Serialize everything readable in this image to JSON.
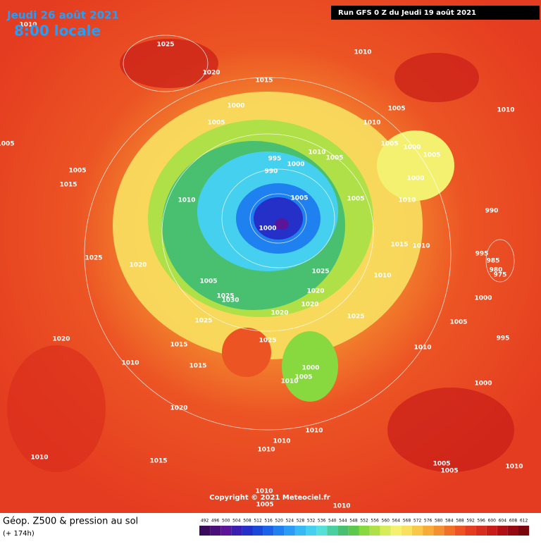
{
  "header": {
    "date": "Jeudi 26 août 2021",
    "time": "8:00 locale",
    "run": "Run GFS 0 Z du Jeudi 19 août 2021"
  },
  "copyright": "Copyright © 2021 Meteociel.fr",
  "footer": {
    "title": "Géop. Z500 & pression au sol",
    "lead": "(+ 174h)"
  },
  "scale": {
    "values": [
      492,
      496,
      500,
      504,
      508,
      512,
      516,
      520,
      524,
      528,
      532,
      536,
      540,
      544,
      548,
      552,
      556,
      560,
      564,
      568,
      572,
      576,
      580,
      584,
      588,
      592,
      596,
      600,
      604,
      608,
      612
    ],
    "colors": [
      "#3a0a5c",
      "#4b0f7a",
      "#5b1598",
      "#3b1fb0",
      "#2430c8",
      "#1a48d8",
      "#1a62e8",
      "#1f80f0",
      "#2a9cf5",
      "#38b8f5",
      "#46d0f0",
      "#56e0d8",
      "#4ad0a0",
      "#48c070",
      "#5cc84c",
      "#88d840",
      "#b0e048",
      "#d8ec58",
      "#f4f070",
      "#f8e060",
      "#f8c848",
      "#f8ac38",
      "#f49030",
      "#f07028",
      "#ec5424",
      "#e43c20",
      "#d82c1c",
      "#c81c18",
      "#b01014",
      "#940a10",
      "#78060c"
    ]
  },
  "isobars": [
    1010,
    1025,
    1020,
    1015,
    1010,
    1000,
    1005,
    1005,
    1010,
    1010,
    1005,
    1005,
    1000,
    1005,
    995,
    1010,
    1005,
    1000,
    990,
    1005,
    1015,
    1000,
    1010,
    1005,
    1005,
    1010,
    990,
    1000,
    1015,
    1010,
    995,
    985,
    980,
    975,
    1025,
    1020,
    1025,
    1010,
    1005,
    1025,
    1030,
    1020,
    1000,
    1020,
    1020,
    1025,
    1025,
    1005,
    1025,
    1015,
    995,
    1020,
    1010,
    1010,
    1015,
    1000,
    1005,
    1010,
    1000,
    1020,
    1010,
    1010,
    1010,
    1015,
    1010,
    1005,
    1005,
    1010,
    1010,
    1005,
    1010
  ]
}
